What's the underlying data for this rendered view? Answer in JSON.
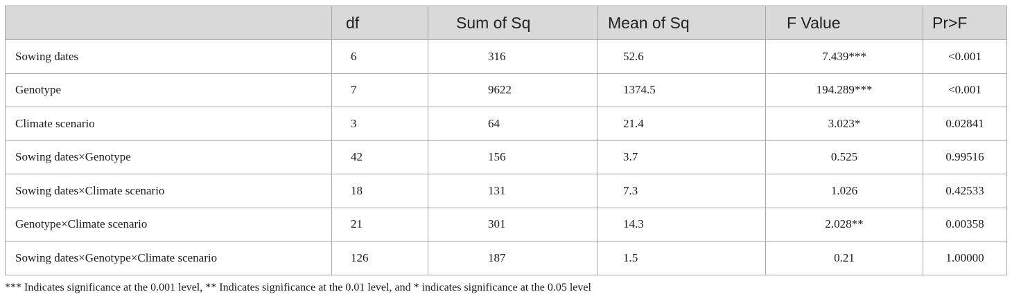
{
  "table": {
    "headers": [
      "",
      "df",
      "Sum of Sq",
      "Mean of Sq",
      "F Value",
      "Pr>F"
    ],
    "rows": [
      {
        "source": "Sowing dates",
        "df": "6",
        "sum_sq": "316",
        "mean_sq": "52.6",
        "f_value": "7.439***",
        "p_value": "<0.001"
      },
      {
        "source": "Genotype",
        "df": "7",
        "sum_sq": "9622",
        "mean_sq": "1374.5",
        "f_value": "194.289***",
        "p_value": "<0.001"
      },
      {
        "source": "Climate scenario",
        "df": "3",
        "sum_sq": "64",
        "mean_sq": "21.4",
        "f_value": "3.023*",
        "p_value": "0.02841"
      },
      {
        "source": "Sowing dates×Genotype",
        "df": "42",
        "sum_sq": "156",
        "mean_sq": "3.7",
        "f_value": "0.525",
        "p_value": "0.99516"
      },
      {
        "source": "Sowing dates×Climate scenario",
        "df": "18",
        "sum_sq": "131",
        "mean_sq": "7.3",
        "f_value": "1.026",
        "p_value": "0.42533"
      },
      {
        "source": "Genotype×Climate scenario",
        "df": "21",
        "sum_sq": "301",
        "mean_sq": "14.3",
        "f_value": "2.028**",
        "p_value": "0.00358"
      },
      {
        "source": "Sowing dates×Genotype×Climate scenario",
        "df": "126",
        "sum_sq": "187",
        "mean_sq": "1.5",
        "f_value": "0.21",
        "p_value": "1.00000"
      }
    ]
  },
  "footnote": "*** Indicates significance at the 0.001 level, ** Indicates significance at the 0.01 level, and * indicates significance at the 0.05 level",
  "colors": {
    "header_bg": "#d9d9d9",
    "border": "#a6a6a6",
    "text": "#1a1a1a"
  }
}
